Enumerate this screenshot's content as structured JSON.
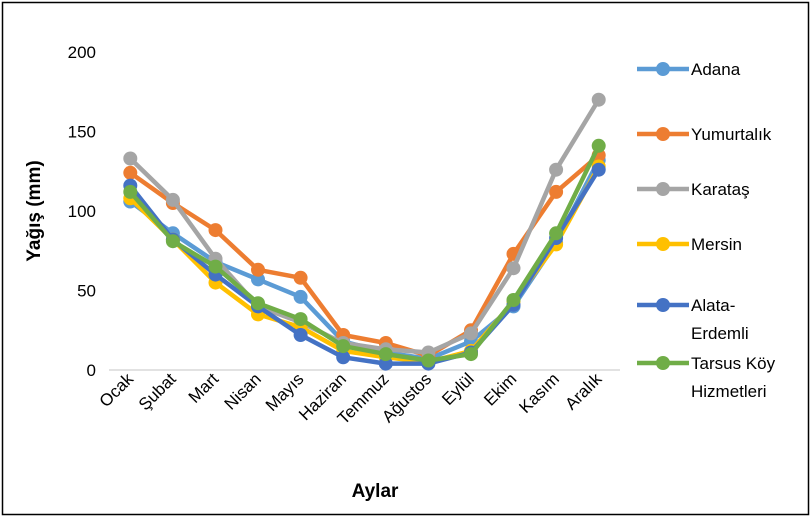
{
  "chart_data": {
    "type": "line",
    "title": "",
    "xlabel": "Aylar",
    "ylabel": "Yağış (mm)",
    "ylim": [
      0,
      200
    ],
    "yticks": [
      "0",
      "50",
      "100",
      "150",
      "200"
    ],
    "grid": false,
    "legend_position": "right",
    "categories": [
      "Ocak",
      "Şubat",
      "Mart",
      "Nisan",
      "Mayıs",
      "Haziran",
      "Temmuz",
      "Ağustos",
      "Eylül",
      "Ekim",
      "Kasım",
      "Aralık"
    ],
    "series": [
      {
        "name": "Adana",
        "legend_lines": [
          "Adana"
        ],
        "color": "#5B9BD5",
        "values": [
          106,
          86,
          68,
          57,
          46,
          18,
          11,
          7,
          18,
          40,
          80,
          132
        ]
      },
      {
        "name": "Yumurtalık",
        "legend_lines": [
          "Yumurtalık"
        ],
        "color": "#ED7D31",
        "values": [
          124,
          105,
          88,
          63,
          58,
          22,
          17,
          9,
          25,
          73,
          112,
          135
        ]
      },
      {
        "name": "Karataş",
        "legend_lines": [
          "Karataş"
        ],
        "color": "#A5A5A5",
        "values": [
          133,
          107,
          70,
          40,
          30,
          17,
          13,
          11,
          23,
          64,
          126,
          170
        ]
      },
      {
        "name": "Mersin",
        "legend_lines": [
          "Mersin"
        ],
        "color": "#FFC000",
        "values": [
          108,
          82,
          55,
          35,
          27,
          12,
          8,
          5,
          12,
          43,
          79,
          128
        ]
      },
      {
        "name": "Alata-Erdemli",
        "legend_lines": [
          "Alata-",
          "Erdemli"
        ],
        "color": "#4472C4",
        "values": [
          116,
          82,
          60,
          40,
          22,
          8,
          4,
          4,
          11,
          41,
          83,
          126
        ]
      },
      {
        "name": "Tarsus Köy Hizmetleri",
        "legend_lines": [
          "Tarsus Köy",
          "Hizmetleri"
        ],
        "color": "#70AD47",
        "values": [
          112,
          81,
          65,
          42,
          32,
          15,
          10,
          6,
          10,
          44,
          86,
          141
        ]
      }
    ]
  }
}
